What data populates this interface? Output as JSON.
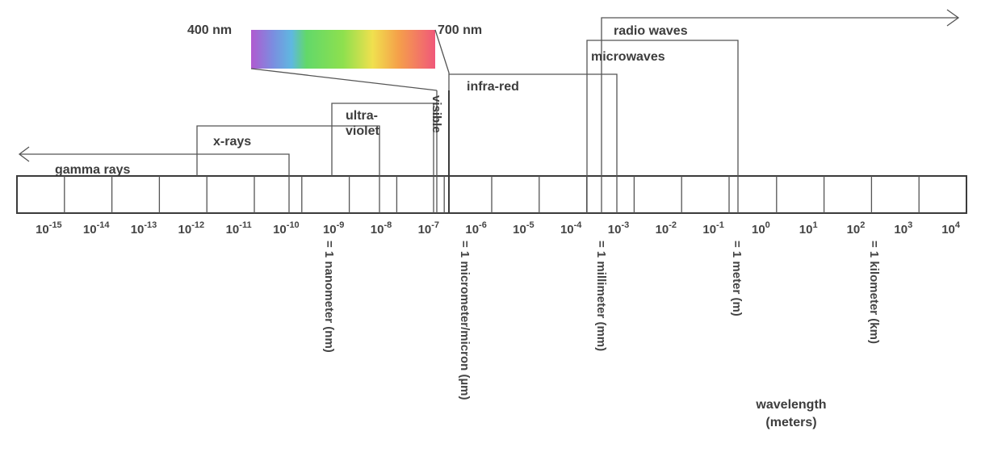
{
  "spectrum": {
    "visible_start_label": "400 nm",
    "visible_end_label": "700 nm",
    "gradient_colors": [
      "#9b59d6",
      "#6fa0e6",
      "#6fdc6a",
      "#8ee050",
      "#f0e050",
      "#f5a04a",
      "#f05a7a"
    ]
  },
  "bands": [
    {
      "id": "gamma",
      "label": "gamma rays"
    },
    {
      "id": "xray",
      "label": "x-rays"
    },
    {
      "id": "uv",
      "label": "ultra-",
      "label2": "violet"
    },
    {
      "id": "visible",
      "label": "visible"
    },
    {
      "id": "ir",
      "label": "infra-red"
    },
    {
      "id": "micro",
      "label": "microwaves"
    },
    {
      "id": "radio",
      "label": "radio waves"
    }
  ],
  "ticks": [
    {
      "base": "10",
      "exp": "-15"
    },
    {
      "base": "10",
      "exp": "-14"
    },
    {
      "base": "10",
      "exp": "-13"
    },
    {
      "base": "10",
      "exp": "-12"
    },
    {
      "base": "10",
      "exp": "-11"
    },
    {
      "base": "10",
      "exp": "-10"
    },
    {
      "base": "10",
      "exp": "-9"
    },
    {
      "base": "10",
      "exp": "-8"
    },
    {
      "base": "10",
      "exp": "-7"
    },
    {
      "base": "10",
      "exp": "-6"
    },
    {
      "base": "10",
      "exp": "-5"
    },
    {
      "base": "10",
      "exp": "-4"
    },
    {
      "base": "10",
      "exp": "-3"
    },
    {
      "base": "10",
      "exp": "-2"
    },
    {
      "base": "10",
      "exp": "-1"
    },
    {
      "base": "10",
      "exp": "0"
    },
    {
      "base": "10",
      "exp": "1"
    },
    {
      "base": "10",
      "exp": "2"
    },
    {
      "base": "10",
      "exp": "3"
    },
    {
      "base": "10",
      "exp": "4"
    }
  ],
  "units": [
    {
      "id": "nm",
      "label": "= 1 nanometer (nm)"
    },
    {
      "id": "um",
      "label": "= 1 micrometer/micron (µm)"
    },
    {
      "id": "mm",
      "label": "= 1 millimeter (mm)"
    },
    {
      "id": "m",
      "label": "= 1 meter (m)"
    },
    {
      "id": "km",
      "label": "= 1 kilometer (km)"
    }
  ],
  "axis_title": {
    "line1": "wavelength",
    "line2": "(meters)"
  }
}
